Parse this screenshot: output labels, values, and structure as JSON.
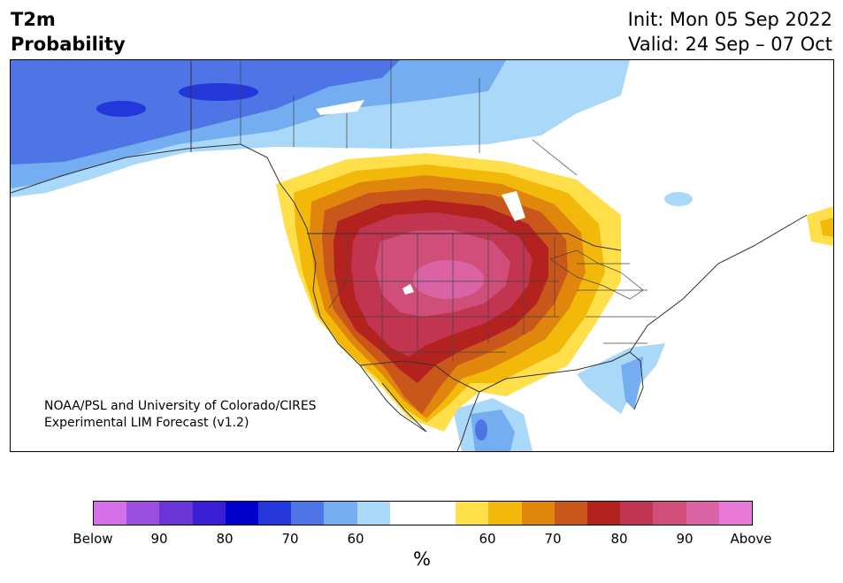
{
  "header": {
    "title_line1": "T2m",
    "title_line2": "Probability",
    "init": "Init: Mon 05 Sep 2022",
    "valid": "Valid: 24 Sep – 07 Oct"
  },
  "credit": {
    "line1": "NOAA/PSL and University of Colorado/CIRES",
    "line2": "Experimental LIM Forecast (v1.2)"
  },
  "colorbar": {
    "colors": [
      "#d670e8",
      "#9b4fe0",
      "#6a35d6",
      "#3a1fd6",
      "#0000cc",
      "#2437db",
      "#4f74e6",
      "#74adf0",
      "#aad8f8",
      "#ffffff",
      "#ffffff",
      "#ffe04a",
      "#f2b80a",
      "#e0860c",
      "#c9561a",
      "#b3221f",
      "#c13550",
      "#d04e7a",
      "#da63a5",
      "#e878d8"
    ],
    "ticks": [
      "Below",
      "90",
      "80",
      "70",
      "60",
      "60",
      "70",
      "80",
      "90",
      "Above"
    ],
    "unit": "%"
  },
  "colors": {
    "cold_1": "#aad8f8",
    "cold_2": "#74adf0",
    "cold_3": "#4f74e6",
    "cold_4": "#2437db",
    "warm_1": "#ffe04a",
    "warm_2": "#f2b80a",
    "warm_3": "#e0860c",
    "warm_4": "#c9561a",
    "warm_5": "#b3221f",
    "warm_6": "#c13550",
    "warm_7": "#d04e7a",
    "warm_8": "#da63a5"
  }
}
